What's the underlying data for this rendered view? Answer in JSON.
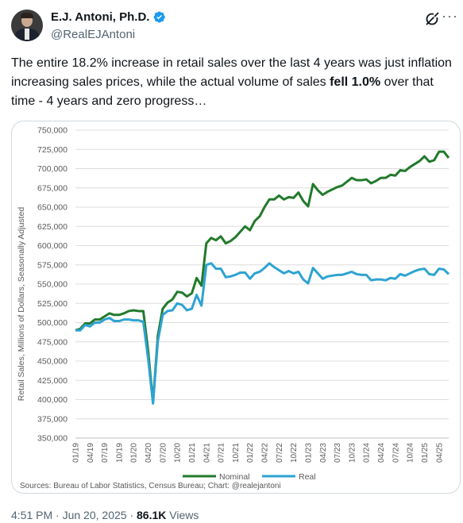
{
  "header": {
    "display_name": "E.J. Antoni, Ph.D.",
    "handle": "@RealEJAntoni"
  },
  "tweet": {
    "text_part1": "The entire 18.2% increase in retail sales over the last 4 years was just inflation increasing sales prices, while the actual volume of sales ",
    "text_bold": "fell 1.0%",
    "text_part2": " over that time - 4 years and zero progress…"
  },
  "meta": {
    "time": "4:51 PM",
    "separator": "·",
    "date": "Jun 20, 2025",
    "views_count": "86.1K",
    "views_label": "Views"
  },
  "colors": {
    "nominal": "#217a2b",
    "real": "#2ea3d2",
    "verified": "#1d9bf0"
  },
  "icons": [
    "verified-badge-icon",
    "grok-icon",
    "more-options-icon"
  ],
  "chart_data": {
    "type": "line",
    "ylabel": "Retail Sales, Millions of Dollars, Seasonally Adjusted",
    "ylim": [
      350000,
      750000
    ],
    "yticks": [
      "350,000",
      "375,000",
      "400,000",
      "425,000",
      "450,000",
      "475,000",
      "500,000",
      "525,000",
      "550,000",
      "575,000",
      "600,000",
      "625,000",
      "650,000",
      "675,000",
      "700,000",
      "725,000",
      "750,000"
    ],
    "xtick_labels": [
      "01/19",
      "04/19",
      "07/19",
      "10/19",
      "01/20",
      "04/20",
      "07/20",
      "10/20",
      "01/21",
      "04/21",
      "07/21",
      "10/21",
      "01/22",
      "04/22",
      "07/22",
      "10/22",
      "01/23",
      "04/23",
      "07/23",
      "10/23",
      "01/24",
      "04/24",
      "07/24",
      "10/24",
      "01/25",
      "04/25"
    ],
    "x_start": "01/19",
    "x_frequency": "monthly",
    "grid": true,
    "legend_position": "bottom",
    "source": "Sources: Bureau of Labor Statistics, Census Bureau; Chart: @realejantoni",
    "series": [
      {
        "name": "Nominal",
        "values": [
          490000,
          492000,
          499000,
          499000,
          504000,
          504000,
          508000,
          512000,
          510000,
          510000,
          512000,
          515000,
          516000,
          515000,
          515000,
          463000,
          396000,
          483000,
          518000,
          526000,
          530000,
          540000,
          539000,
          534000,
          538000,
          558000,
          548000,
          603000,
          610000,
          607000,
          612000,
          603000,
          606000,
          611000,
          618000,
          625000,
          620000,
          632000,
          638000,
          650000,
          660000,
          660000,
          665000,
          660000,
          663000,
          662000,
          669000,
          658000,
          651000,
          680000,
          672000,
          666000,
          670000,
          673000,
          676000,
          678000,
          683000,
          688000,
          685000,
          685000,
          686000,
          681000,
          684000,
          688000,
          688000,
          692000,
          691000,
          698000,
          697000,
          702000,
          706000,
          710000,
          716000,
          709000,
          711000,
          722000,
          722000,
          714000
        ]
      },
      {
        "name": "Real",
        "values": [
          490000,
          490000,
          497000,
          495000,
          500000,
          500000,
          504000,
          506000,
          502000,
          502000,
          504000,
          504000,
          503000,
          503000,
          501000,
          453000,
          395000,
          476000,
          510000,
          515000,
          516000,
          525000,
          523000,
          516000,
          518000,
          536000,
          522000,
          575000,
          577000,
          570000,
          570000,
          559000,
          560000,
          562000,
          565000,
          565000,
          557000,
          564000,
          566000,
          571000,
          577000,
          572000,
          568000,
          564000,
          567000,
          564000,
          566000,
          556000,
          551000,
          571000,
          564000,
          557000,
          560000,
          561000,
          562000,
          562000,
          564000,
          566000,
          563000,
          562000,
          562000,
          555000,
          556000,
          556000,
          555000,
          558000,
          557000,
          563000,
          561000,
          564000,
          567000,
          569000,
          570000,
          563000,
          562000,
          570000,
          569000,
          563000
        ]
      }
    ]
  }
}
